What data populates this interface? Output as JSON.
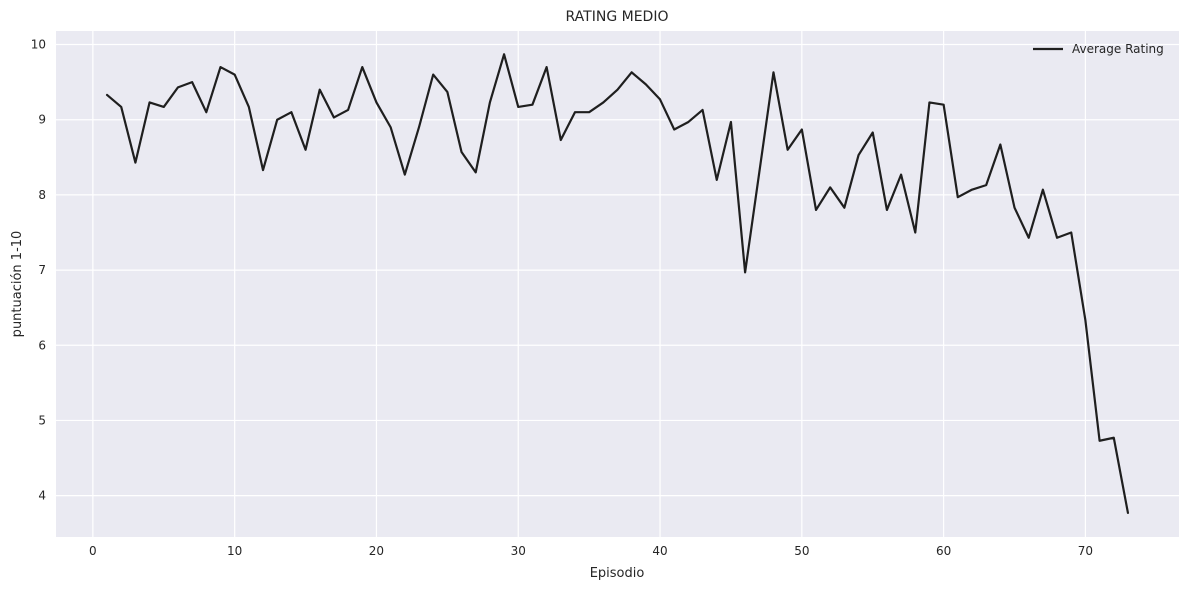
{
  "chart_data": {
    "type": "line",
    "title": "RATING MEDIO",
    "xlabel": "Episodio",
    "ylabel": "puntuación 1-10",
    "xlim": [
      -2.6,
      76.6
    ],
    "ylim": [
      3.45,
      10.18
    ],
    "xticks": [
      0,
      10,
      20,
      30,
      40,
      50,
      60,
      70
    ],
    "yticks": [
      4,
      5,
      6,
      7,
      8,
      9,
      10
    ],
    "grid": true,
    "legend_position": "top-right",
    "series": [
      {
        "name": "Average Rating",
        "color": "#1f1f1f",
        "x": [
          1,
          2,
          3,
          4,
          5,
          6,
          7,
          8,
          9,
          10,
          11,
          12,
          13,
          14,
          15,
          16,
          17,
          18,
          19,
          20,
          21,
          22,
          23,
          24,
          25,
          26,
          27,
          28,
          29,
          30,
          31,
          32,
          33,
          34,
          35,
          36,
          37,
          38,
          39,
          40,
          41,
          42,
          43,
          44,
          45,
          46,
          47,
          48,
          49,
          50,
          51,
          52,
          53,
          54,
          55,
          56,
          57,
          58,
          59,
          60,
          61,
          62,
          63,
          64,
          65,
          66,
          67,
          68,
          69,
          70,
          71,
          72,
          73
        ],
        "y": [
          9.33,
          9.17,
          8.43,
          9.23,
          9.17,
          9.43,
          9.5,
          9.1,
          9.7,
          9.6,
          9.17,
          8.33,
          9.0,
          9.1,
          8.6,
          9.4,
          9.03,
          9.13,
          9.7,
          9.23,
          8.9,
          8.27,
          8.9,
          9.6,
          9.37,
          8.57,
          8.3,
          9.23,
          9.87,
          9.17,
          9.2,
          9.7,
          8.73,
          9.1,
          9.1,
          9.23,
          9.4,
          9.63,
          9.47,
          9.27,
          8.87,
          8.97,
          9.13,
          8.2,
          8.97,
          6.97,
          8.3,
          9.63,
          8.6,
          8.87,
          7.8,
          8.1,
          7.83,
          8.53,
          8.83,
          7.8,
          8.27,
          7.5,
          9.23,
          9.2,
          7.97,
          8.07,
          8.13,
          8.67,
          7.83,
          7.43,
          8.07,
          7.43,
          7.5,
          6.33,
          4.73,
          4.77,
          3.77
        ]
      }
    ]
  }
}
